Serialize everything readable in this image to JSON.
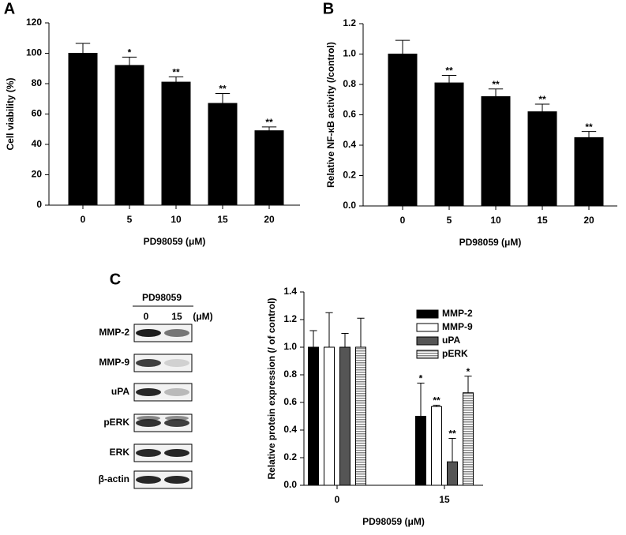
{
  "chart_data": [
    {
      "type": "bar",
      "panel": "A",
      "ylabel": "Cell viability (%)",
      "xlabel": "PD98059 (μM)",
      "categories": [
        "0",
        "5",
        "10",
        "15",
        "20"
      ],
      "values": [
        100,
        92,
        81,
        67,
        49
      ],
      "errors": [
        6.5,
        5.5,
        3.5,
        6.5,
        2.5
      ],
      "annotations": [
        null,
        "*",
        "**",
        "**",
        "**"
      ],
      "color": "#000000",
      "ylim": [
        0,
        120
      ],
      "yticks": [
        0,
        20,
        40,
        60,
        80,
        100,
        120
      ]
    },
    {
      "type": "bar",
      "panel": "B",
      "ylabel": "Relative NF-κB activity (/control)",
      "xlabel": "PD98059 (μM)",
      "categories": [
        "0",
        "5",
        "10",
        "15",
        "20"
      ],
      "values": [
        1.0,
        0.81,
        0.72,
        0.62,
        0.45
      ],
      "errors": [
        0.09,
        0.05,
        0.05,
        0.05,
        0.04
      ],
      "annotations": [
        null,
        "**",
        "**",
        "**",
        "**"
      ],
      "color": "#000000",
      "ylim": [
        0,
        1.2
      ],
      "yticks": [
        {
          "value": 0,
          "label": "0.0"
        },
        {
          "value": 0.2,
          "label": "0.2"
        },
        {
          "value": 0.4,
          "label": "0.4"
        },
        {
          "value": 0.6,
          "label": "0.6"
        },
        {
          "value": 0.8,
          "label": "0.8"
        },
        {
          "value": 1,
          "label": "1.0"
        },
        {
          "value": 1.2,
          "label": "1.2"
        }
      ]
    },
    {
      "type": "bar",
      "panel": "C",
      "ylabel": "Relative protein expression (/ of control)",
      "xlabel": "PD98059 (μM)",
      "categories": [
        "0",
        "15"
      ],
      "series": [
        {
          "name": "MMP-2",
          "color": "#000000",
          "values": [
            1.0,
            0.5
          ],
          "errors": [
            0.12,
            0.24
          ],
          "annotations": [
            null,
            "*"
          ]
        },
        {
          "name": "MMP-9",
          "color": "#ffffff",
          "values": [
            1.0,
            0.57
          ],
          "errors": [
            0.25,
            0.01
          ],
          "annotations": [
            null,
            "**"
          ]
        },
        {
          "name": "uPA",
          "color": "#555555",
          "values": [
            1.0,
            0.17
          ],
          "errors": [
            0.1,
            0.17
          ],
          "annotations": [
            null,
            "**"
          ]
        },
        {
          "name": "pERK",
          "color": "#bbbbbb",
          "pattern": "horizontal-lines",
          "values": [
            1.0,
            0.67
          ],
          "errors": [
            0.21,
            0.12
          ],
          "annotations": [
            null,
            "*"
          ]
        }
      ],
      "legend": "upper right",
      "ylim": [
        0,
        1.4
      ],
      "yticks": [
        {
          "value": 0,
          "label": "0.0"
        },
        {
          "value": 0.2,
          "label": "0.2"
        },
        {
          "value": 0.4,
          "label": "0.4"
        },
        {
          "value": 0.6,
          "label": "0.6"
        },
        {
          "value": 0.8,
          "label": "0.8"
        },
        {
          "value": 1,
          "label": "1.0"
        },
        {
          "value": 1.2,
          "label": "1.2"
        },
        {
          "value": 1.4,
          "label": "1.4"
        }
      ]
    }
  ],
  "blot": {
    "treatment": "PD98059",
    "lanes": [
      "0",
      "15"
    ],
    "unit": "(μM)",
    "rows": [
      "MMP-2",
      "MMP-9",
      "uPA",
      "pERK",
      "ERK",
      "β-actin"
    ]
  }
}
